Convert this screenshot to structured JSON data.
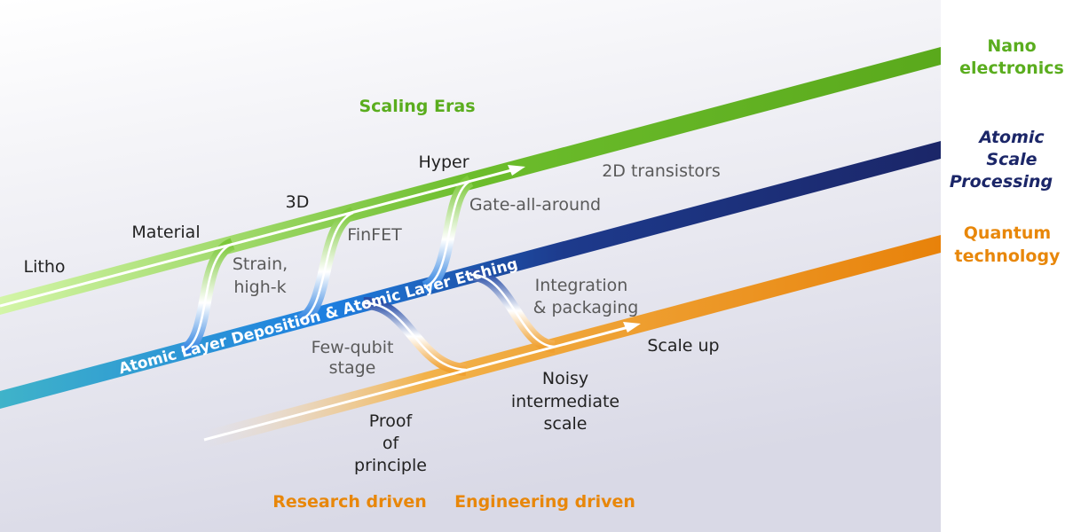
{
  "title": "Scaling Eras",
  "tracks": [
    {
      "label": [
        "Nano",
        "electronics"
      ]
    },
    {
      "label": [
        "Atomic",
        "Scale",
        "Processing"
      ],
      "band_text": "Atomic Layer Deposition & Atomic Layer Etching"
    },
    {
      "label": [
        "Quantum",
        "technology"
      ]
    }
  ],
  "nano_stages": [
    "Litho",
    "Material",
    "3D",
    "Hyper"
  ],
  "nano_transitions": [
    [
      "Strain,",
      "high-k"
    ],
    [
      "FinFET"
    ],
    [
      "Gate-all-around"
    ],
    [
      "2D transistors"
    ]
  ],
  "quantum_transitions": [
    [
      "Few-qubit",
      "stage"
    ],
    [
      "Integration",
      "& packaging"
    ]
  ],
  "quantum_stages": [
    [
      "Proof",
      "of",
      "principle"
    ],
    [
      "Noisy",
      "intermediate",
      "scale"
    ],
    [
      "Scale up"
    ]
  ],
  "phases": [
    "Research driven",
    "Engineering driven"
  ]
}
